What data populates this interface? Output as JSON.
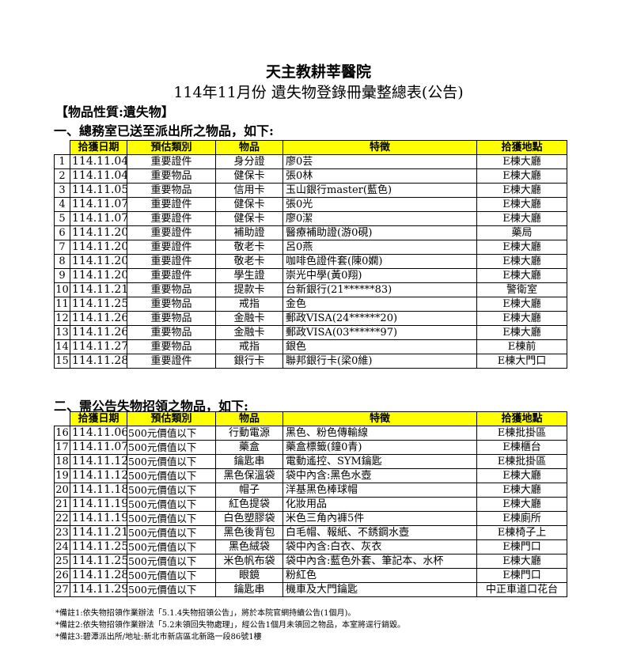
{
  "header": {
    "hospital": "天主教耕莘醫院",
    "subtitle": "114年11月份 遺失物登錄冊彙整總表(公告)",
    "nature": "【物品性質:遺失物】"
  },
  "colors": {
    "header_fill": "#ffff00",
    "border": "#000000"
  },
  "columns": [
    "拾獲日期",
    "預估類別",
    "物品",
    "特徵",
    "拾獲地點"
  ],
  "section1": {
    "heading": "一、總務室已送至派出所之物品，如下:",
    "rows": [
      [
        "1",
        "114.11.04",
        "重要證件",
        "身分證",
        "廖0芸",
        "E棟大廳"
      ],
      [
        "2",
        "114.11.04",
        "重要物品",
        "健保卡",
        "張0林",
        "E棟大廳"
      ],
      [
        "3",
        "114.11.05",
        "重要物品",
        "信用卡",
        "玉山銀行master(藍色)",
        "E棟大廳"
      ],
      [
        "4",
        "114.11.07",
        "重要證件",
        "健保卡",
        "張0光",
        "E棟大廳"
      ],
      [
        "5",
        "114.11.07",
        "重要證件",
        "健保卡",
        "廖0潔",
        "E棟大廳"
      ],
      [
        "6",
        "114.11.20",
        "重要證件",
        "補助證",
        "醫療補助證(游0硯)",
        "藥局"
      ],
      [
        "7",
        "114.11.20",
        "重要證件",
        "敬老卡",
        "呂0燕",
        "E棟大廳"
      ],
      [
        "8",
        "114.11.20",
        "重要證件",
        "敬老卡",
        "咖啡色證件套(陳0嫻)",
        "E棟大廳"
      ],
      [
        "9",
        "114.11.20",
        "重要證件",
        "學生證",
        "崇光中學(黃0翔)",
        "E棟大廳"
      ],
      [
        "10",
        "114.11.21",
        "重要物品",
        "提款卡",
        "台新銀行(21******83)",
        "警衛室"
      ],
      [
        "11",
        "114.11.25",
        "重要物品",
        "戒指",
        "金色",
        "E棟大廳"
      ],
      [
        "12",
        "114.11.26",
        "重要物品",
        "金融卡",
        "郵政VISA(24******20)",
        "E棟大廳"
      ],
      [
        "13",
        "114.11.26",
        "重要物品",
        "金融卡",
        "郵政VISA(03******97)",
        "E棟大廳"
      ],
      [
        "14",
        "114.11.27",
        "重要物品",
        "戒指",
        "銀色",
        "E棟前"
      ],
      [
        "15",
        "114.11.28",
        "重要證件",
        "銀行卡",
        "聯邦銀行卡(梁0維)",
        "E棟大門口"
      ]
    ]
  },
  "section2": {
    "heading": "二、需公告失物招領之物品，如下:",
    "rows": [
      [
        "16",
        "114.11.06",
        "500元價值以下",
        "行動電源",
        "黑色、粉色傳輸線",
        "E棟批掛區"
      ],
      [
        "17",
        "114.11.07",
        "500元價值以下",
        "藥盒",
        "藥盒標籤(鐘0青)",
        "E棟櫃台"
      ],
      [
        "18",
        "114.11.12",
        "500元價值以下",
        "鑰匙串",
        "電動遙控、SYM鑰匙",
        "E棟批掛區"
      ],
      [
        "19",
        "114.11.12",
        "500元價值以下",
        "黑色保溫袋",
        "袋中內含:黑色水壺",
        "E棟大廳"
      ],
      [
        "20",
        "114.11.18",
        "500元價值以下",
        "帽子",
        "洋基黑色棒球帽",
        "E棟大廳"
      ],
      [
        "21",
        "114.11.19",
        "500元價值以下",
        "紅色提袋",
        "化妝用品",
        "E棟大廳"
      ],
      [
        "22",
        "114.11.19",
        "500元價值以下",
        "白色塑膠袋",
        "米色三角內褲5件",
        "E棟廁所"
      ],
      [
        "23",
        "114.11.21",
        "500元價值以下",
        "黑色後背包",
        "白毛帽、報紙、不銹鋼水壺",
        "E棟椅子上"
      ],
      [
        "24",
        "114.11.25",
        "500元價值以下",
        "黑色絨袋",
        "袋中內含:白衣、灰衣",
        "E棟門口"
      ],
      [
        "25",
        "114.11.25",
        "500元價值以下",
        "米色帆布袋",
        "袋中內含:藍色外套、筆記本、水杯",
        "E棟大廳"
      ],
      [
        "26",
        "114.11.28",
        "500元價值以下",
        "眼鏡",
        "粉紅色",
        "E棟門口"
      ],
      [
        "27",
        "114.11.29",
        "500元價值以下",
        "鑰匙串",
        "機車及大門鑰匙",
        "中正車道口花台"
      ]
    ]
  },
  "notes": [
    "*備註1:依失物招領作業辦法「5.1.4失物招領公告」，將於本院官網持續公告(1個月)。",
    "*備註2:依失物招領作業辦法「5.2未領回失物處理」，經公告1個月未領回之物品，本室將逕行銷毀。",
    "*備註3:碧潭派出所/地址:新北市新店區北新路一段86號1樓"
  ]
}
